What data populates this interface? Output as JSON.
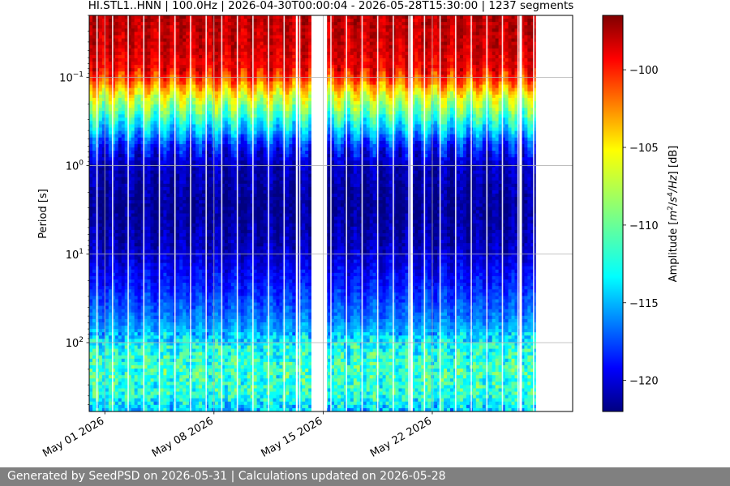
{
  "chart_data": {
    "type": "heatmap",
    "title": "HI.STL1..HNN | 100.0Hz | 2026-04-30T00:00:04 - 2026-05-28T15:30:00 | 1237 segments",
    "ylabel": "Period [s]",
    "y_scale": "log",
    "y_inverted": true,
    "ylim": [
      0.02,
      600
    ],
    "y_ticks": [
      {
        "value": 0.1,
        "base": "10",
        "exp": "−1"
      },
      {
        "value": 1,
        "base": "10",
        "exp": "0"
      },
      {
        "value": 10,
        "base": "10",
        "exp": "1"
      },
      {
        "value": 100,
        "base": "10",
        "exp": "2"
      }
    ],
    "xlim": [
      "2026-04-30",
      "2026-05-31"
    ],
    "x_ticks": [
      {
        "date": "2026-05-01",
        "label": "May 01 2026"
      },
      {
        "date": "2026-05-08",
        "label": "May 08 2026"
      },
      {
        "date": "2026-05-15",
        "label": "May 15 2026"
      },
      {
        "date": "2026-05-22",
        "label": "May 22 2026"
      }
    ],
    "data_gaps": [
      {
        "start": "2026-05-13 06:00",
        "end": "2026-05-13 09:00"
      },
      {
        "start": "2026-05-14 06:00",
        "end": "2026-05-15 06:00"
      },
      {
        "start": "2026-05-20 14:00",
        "end": "2026-05-20 18:00"
      },
      {
        "start": "2026-05-27 14:00",
        "end": "2026-05-27 18:00"
      }
    ],
    "daily_gaps_hour": 12,
    "amplitude_profile_db": [
      {
        "period": 0.02,
        "db": -98.0
      },
      {
        "period": 0.045,
        "db": -98.5
      },
      {
        "period": 0.08,
        "db": -99.5
      },
      {
        "period": 0.11,
        "db": -102.0
      },
      {
        "period": 0.16,
        "db": -106.5
      },
      {
        "period": 0.25,
        "db": -110.0
      },
      {
        "period": 0.4,
        "db": -114.0
      },
      {
        "period": 0.6,
        "db": -118.0
      },
      {
        "period": 1.0,
        "db": -120.5
      },
      {
        "period": 3.0,
        "db": -121.5
      },
      {
        "period": 8.0,
        "db": -120.5
      },
      {
        "period": 20.0,
        "db": -118.5
      },
      {
        "period": 50.0,
        "db": -116.0
      },
      {
        "period": 80.0,
        "db": -114.0
      },
      {
        "period": 110.0,
        "db": -112.0
      },
      {
        "period": 200.0,
        "db": -111.0
      },
      {
        "period": 400.0,
        "db": -111.5
      },
      {
        "period": 600.0,
        "db": -114.0
      }
    ],
    "colorbar": {
      "label_prefix": "Amplitude [",
      "label_m": "m",
      "label_m_exp": "2",
      "label_mid": "/",
      "label_s": "s",
      "label_s_exp": "4",
      "label_hz": "/Hz",
      "label_suffix": "] [dB]",
      "colormap": "jet",
      "range": [
        -122,
        -96.5
      ],
      "ticks": [
        {
          "value": -100,
          "label": "−100"
        },
        {
          "value": -105,
          "label": "−105"
        },
        {
          "value": -110,
          "label": "−110"
        },
        {
          "value": -115,
          "label": "−115"
        },
        {
          "value": -120,
          "label": "−120"
        }
      ]
    },
    "grid": true
  },
  "footer": {
    "text": "Generated by SeedPSD on 2026-05-31 | Calculations updated on 2026-05-28"
  }
}
